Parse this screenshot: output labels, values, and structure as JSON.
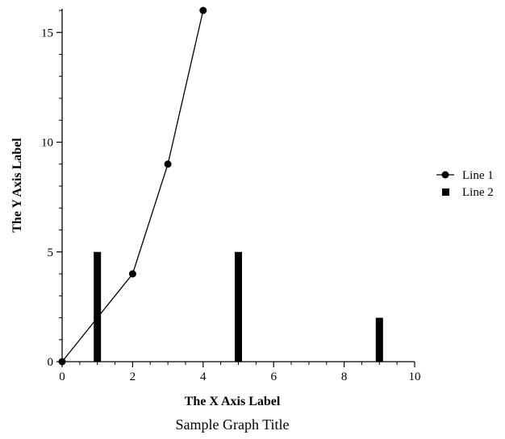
{
  "chart_data": {
    "type": "line",
    "title": "Sample Graph Title",
    "xlabel": "The X Axis Label",
    "ylabel": "The Y Axis Label",
    "xlim": [
      0,
      10
    ],
    "ylim": [
      0,
      16
    ],
    "xticks": [
      0,
      2,
      4,
      6,
      8,
      10
    ],
    "yticks": [
      0,
      5,
      10,
      15
    ],
    "grid": false,
    "legend_position": "right",
    "series": [
      {
        "name": "Line 1",
        "type": "line",
        "marker": "circle",
        "color": "#000000",
        "x": [
          0,
          2,
          3,
          4
        ],
        "y": [
          0,
          4,
          9,
          16
        ]
      },
      {
        "name": "Line 2",
        "type": "bar",
        "marker": "square",
        "color": "#000000",
        "x": [
          1,
          5,
          9
        ],
        "y": [
          5,
          5,
          2
        ]
      }
    ]
  }
}
